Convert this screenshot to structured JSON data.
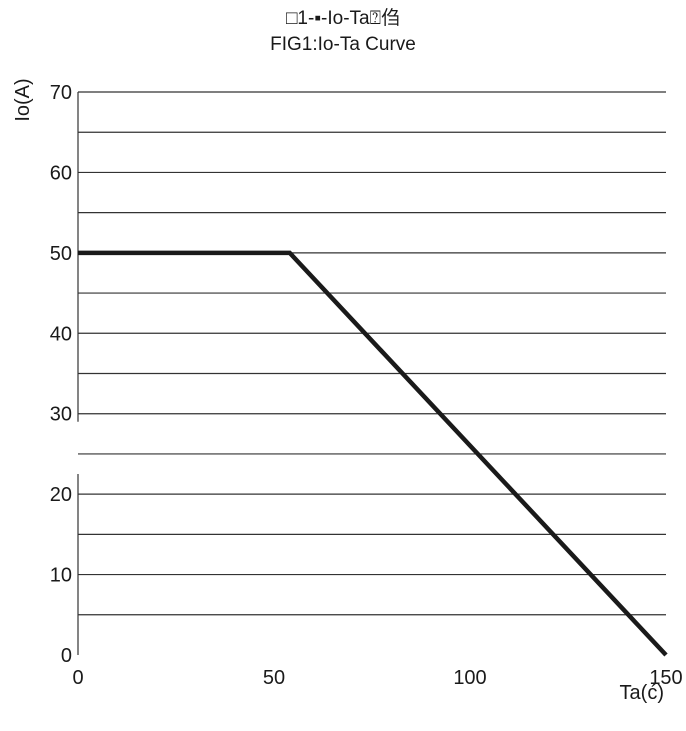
{
  "chart_data": {
    "type": "line",
    "title_line1": "□1-▪-Io-Ta⍰㑇",
    "title_line2": "FIG1:Io-Ta Curve",
    "xlabel": "Ta(ć)",
    "ylabel": "Io(A)",
    "xlim": [
      0,
      150
    ],
    "ylim": [
      0,
      70
    ],
    "x_ticks": [
      0,
      50,
      100,
      150
    ],
    "x_tick_labels": [
      "0",
      "50",
      "100",
      "150"
    ],
    "y_ticks": [
      0,
      10,
      20,
      30,
      40,
      50,
      60,
      70
    ],
    "y_tick_labels": [
      "0",
      "10",
      "20",
      "30",
      "40",
      "50",
      "60",
      "70"
    ],
    "gridlines_y": [
      5,
      10,
      15,
      20,
      25,
      30,
      35,
      40,
      45,
      50,
      55,
      60,
      65,
      70
    ],
    "grid": true,
    "colors": {
      "line": "#1a1a1a",
      "grid": "#333333",
      "axis": "#333333"
    },
    "series": [
      {
        "x": [
          0,
          54,
          150
        ],
        "y": [
          50,
          50,
          0
        ]
      }
    ]
  }
}
